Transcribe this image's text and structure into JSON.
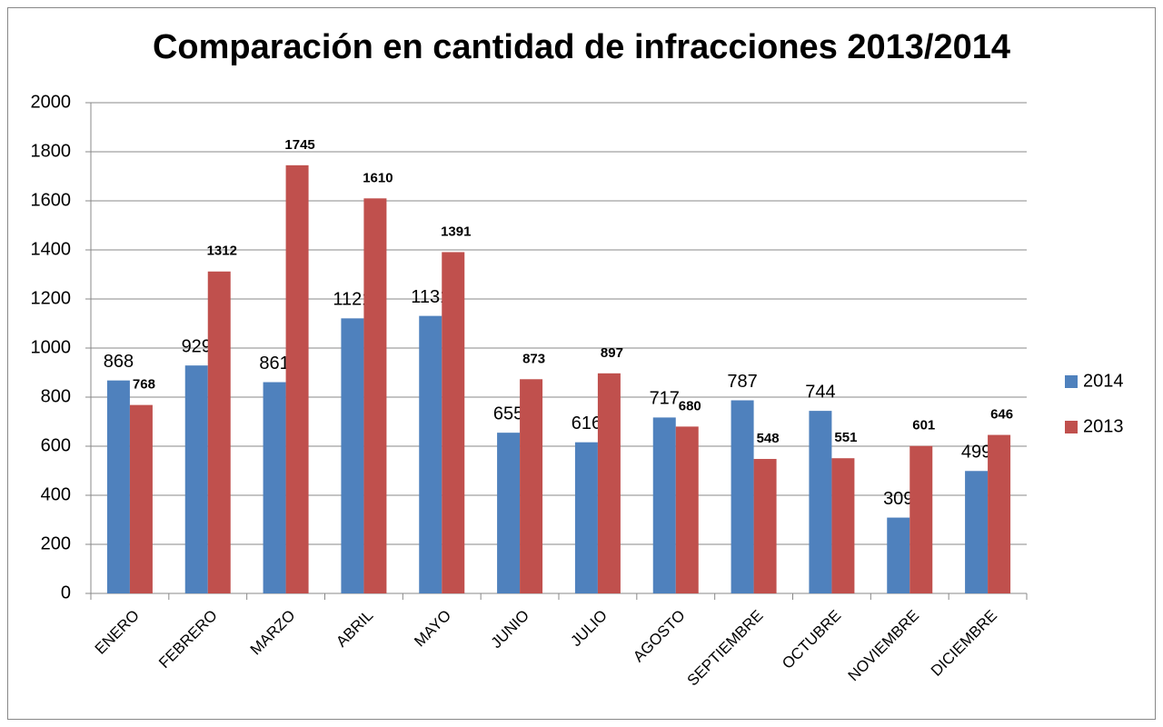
{
  "chart_data": {
    "type": "bar",
    "title": "Comparación en cantidad de infracciones 2013/2014",
    "categories": [
      "ENERO",
      "FEBRERO",
      "MARZO",
      "ABRIL",
      "MAYO",
      "JUNIO",
      "JULIO",
      "AGOSTO",
      "SEPTIEMBRE",
      "OCTUBRE",
      "NOVIEMBRE",
      "DICIEMBRE"
    ],
    "series": [
      {
        "name": "2014",
        "color": "#4f81bd",
        "values": [
          868,
          929,
          861,
          1121,
          1131,
          655,
          616,
          717,
          787,
          744,
          309,
          499
        ]
      },
      {
        "name": "2013",
        "color": "#c0504d",
        "values": [
          768,
          1312,
          1745,
          1610,
          1391,
          873,
          897,
          680,
          548,
          551,
          601,
          646
        ]
      }
    ],
    "ylim": [
      0,
      2000
    ],
    "yticks": [
      0,
      200,
      400,
      600,
      800,
      1000,
      1200,
      1400,
      1600,
      1800,
      2000
    ],
    "grid": true,
    "legend": "right"
  }
}
